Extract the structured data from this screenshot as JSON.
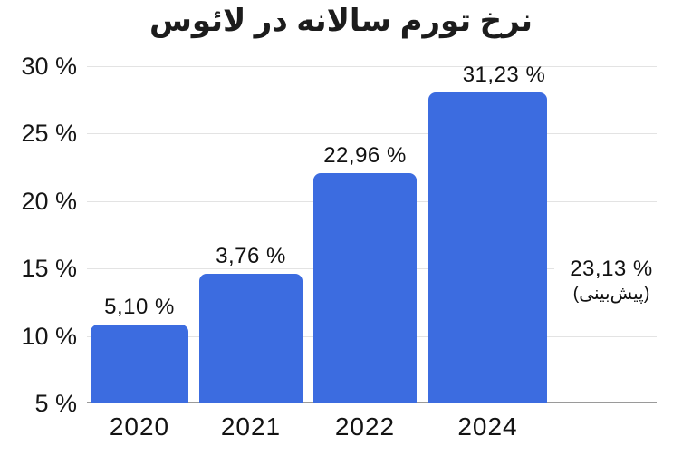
{
  "title": "نرخ تورم سالانه در لائوس",
  "chart_data": {
    "type": "bar",
    "title": "نرخ تورم سالانه در لائوس",
    "categories": [
      "2020",
      "2021",
      "2022",
      "2024"
    ],
    "values": [
      5.1,
      3.76,
      22.96,
      31.23
    ],
    "value_labels": [
      "5,10 %",
      "3,76 %",
      "22,96 %",
      "31,23 %"
    ],
    "bar_rendered_values": [
      10.75,
      14.55,
      22.0,
      28.0
    ],
    "y_ticks": [
      "30 %",
      "25 %",
      "20 %",
      "15 %",
      "10 %",
      "5 %"
    ],
    "ylim": [
      5,
      30
    ],
    "xlabel": "",
    "ylabel": "",
    "grid": "horizontal",
    "legend": "none",
    "forecast_annotation": {
      "value": 23.13,
      "value_label": "23,13 %",
      "note": "(پیش‌بینی)"
    },
    "colors": {
      "bar": "#3c6ce0",
      "gridline": "#e3e3e3",
      "axis_line": "#9a9a9a",
      "text": "#111111",
      "background": "#ffffff"
    }
  }
}
